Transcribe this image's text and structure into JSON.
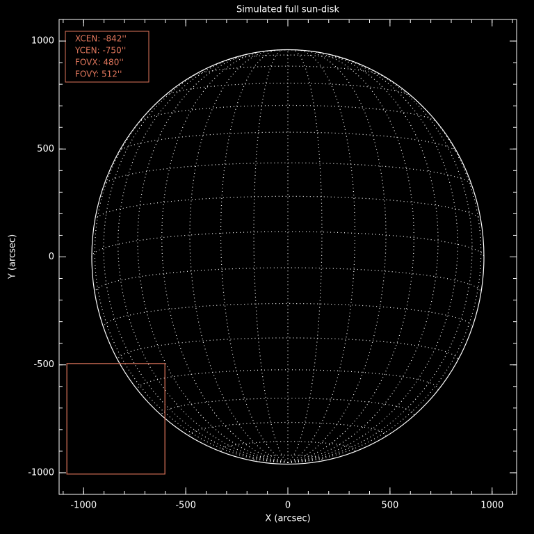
{
  "chart_data": {
    "type": "sundisk",
    "title": "Simulated full sun-disk",
    "x_label": "X (arcsec)",
    "y_label": "Y (arcsec)",
    "xlim": [
      -1120,
      1120
    ],
    "ylim": [
      -1100,
      1100
    ],
    "xticks": [
      -1000,
      -500,
      0,
      500,
      1000
    ],
    "yticks": [
      -1000,
      -500,
      0,
      500,
      1000
    ],
    "minor": 5,
    "disk": {
      "radius": 960,
      "b0": -7,
      "grid_step": 10
    },
    "fov": {
      "xcen": {
        "value": -842,
        "label": "XCEN:  -842''"
      },
      "ycen": {
        "value": -750,
        "label": "YCEN:  -750''"
      },
      "fovx": {
        "value": 480,
        "label": "FOVX:  480''"
      },
      "fovy": {
        "value": 512,
        "label": "FOVY:  512''"
      },
      "color": "#e0765c"
    }
  }
}
